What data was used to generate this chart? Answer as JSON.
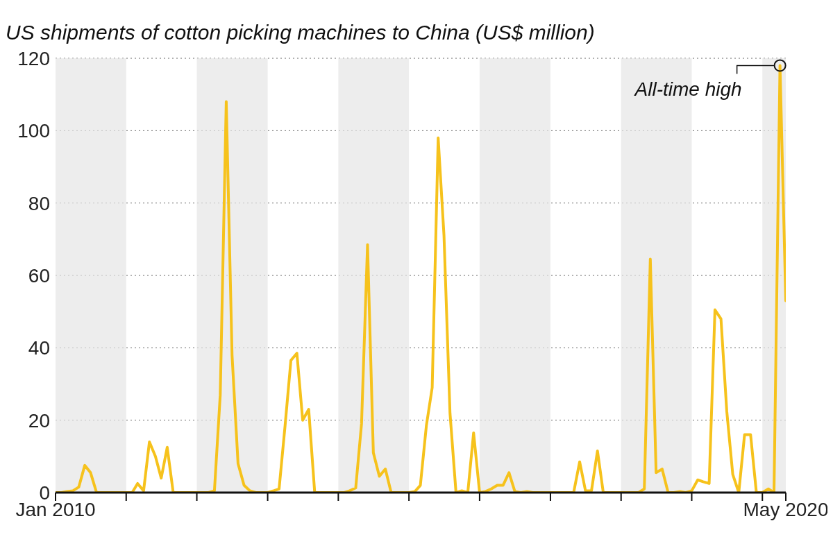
{
  "chart_data": {
    "type": "line",
    "subtitle": "US shipments of cotton picking machines to China (US$ million)",
    "x": [
      "2010-01",
      "2010-02",
      "2010-03",
      "2010-04",
      "2010-05",
      "2010-06",
      "2010-07",
      "2010-08",
      "2010-09",
      "2010-10",
      "2010-11",
      "2010-12",
      "2011-01",
      "2011-02",
      "2011-03",
      "2011-04",
      "2011-05",
      "2011-06",
      "2011-07",
      "2011-08",
      "2011-09",
      "2011-10",
      "2011-11",
      "2011-12",
      "2012-01",
      "2012-02",
      "2012-03",
      "2012-04",
      "2012-05",
      "2012-06",
      "2012-07",
      "2012-08",
      "2012-09",
      "2012-10",
      "2012-11",
      "2012-12",
      "2013-01",
      "2013-02",
      "2013-03",
      "2013-04",
      "2013-05",
      "2013-06",
      "2013-07",
      "2013-08",
      "2013-09",
      "2013-10",
      "2013-11",
      "2013-12",
      "2014-01",
      "2014-02",
      "2014-03",
      "2014-04",
      "2014-05",
      "2014-06",
      "2014-07",
      "2014-08",
      "2014-09",
      "2014-10",
      "2014-11",
      "2014-12",
      "2015-01",
      "2015-02",
      "2015-03",
      "2015-04",
      "2015-05",
      "2015-06",
      "2015-07",
      "2015-08",
      "2015-09",
      "2015-10",
      "2015-11",
      "2015-12",
      "2016-01",
      "2016-02",
      "2016-03",
      "2016-04",
      "2016-05",
      "2016-06",
      "2016-07",
      "2016-08",
      "2016-09",
      "2016-10",
      "2016-11",
      "2016-12",
      "2017-01",
      "2017-02",
      "2017-03",
      "2017-04",
      "2017-05",
      "2017-06",
      "2017-07",
      "2017-08",
      "2017-09",
      "2017-10",
      "2017-11",
      "2017-12",
      "2018-01",
      "2018-02",
      "2018-03",
      "2018-04",
      "2018-05",
      "2018-06",
      "2018-07",
      "2018-08",
      "2018-09",
      "2018-10",
      "2018-11",
      "2018-12",
      "2019-01",
      "2019-02",
      "2019-03",
      "2019-04",
      "2019-05",
      "2019-06",
      "2019-07",
      "2019-08",
      "2019-09",
      "2019-10",
      "2019-11",
      "2019-12",
      "2020-01",
      "2020-02",
      "2020-03",
      "2020-04",
      "2020-05"
    ],
    "series": [
      {
        "color": "#f6c21c",
        "values": [
          0,
          0,
          0.3,
          0.5,
          1.5,
          7.5,
          5.5,
          0,
          0,
          0,
          0,
          0,
          0,
          0,
          2.5,
          0.5,
          14,
          10,
          4,
          12.5,
          0,
          0,
          0,
          0,
          0,
          0,
          0,
          0.5,
          27,
          108,
          38,
          8,
          2,
          0.5,
          0,
          0,
          0,
          0.5,
          1,
          18.5,
          36.5,
          38.5,
          20,
          23,
          0,
          0,
          0,
          0,
          0,
          0,
          0.5,
          1.3,
          19,
          68.5,
          11,
          4.5,
          6.5,
          0,
          0,
          0,
          0,
          0.3,
          2,
          18.5,
          29,
          98,
          71,
          22,
          0,
          0.5,
          0,
          16.5,
          0,
          0.3,
          1,
          2,
          2,
          5.5,
          0.3,
          0,
          0.3,
          0,
          0,
          0,
          0,
          0,
          0,
          0,
          0,
          8.5,
          0.5,
          0.5,
          11.5,
          0,
          0,
          0,
          0,
          0,
          0,
          0,
          1,
          64.5,
          5.5,
          6.5,
          0,
          0,
          0.3,
          0,
          0.5,
          3.5,
          3,
          2.5,
          50.5,
          48,
          22.5,
          5,
          0,
          16,
          16,
          0,
          0,
          1,
          0,
          118,
          53
        ]
      }
    ],
    "xlim": [
      "2010-01",
      "2020-05"
    ],
    "xticks": [
      {
        "value": "2010-01",
        "label": "Jan 2010"
      },
      {
        "value": "2011-01",
        "label": null
      },
      {
        "value": "2012-01",
        "label": null
      },
      {
        "value": "2013-01",
        "label": null
      },
      {
        "value": "2014-01",
        "label": null
      },
      {
        "value": "2015-01",
        "label": null
      },
      {
        "value": "2016-01",
        "label": null
      },
      {
        "value": "2017-01",
        "label": null
      },
      {
        "value": "2018-01",
        "label": null
      },
      {
        "value": "2019-01",
        "label": null
      },
      {
        "value": "2020-01",
        "label": null
      },
      {
        "value": "2020-05",
        "label": "May 2020"
      }
    ],
    "ylim": [
      0,
      120
    ],
    "yticks": [
      0,
      20,
      40,
      60,
      80,
      100,
      120
    ],
    "grid": "y",
    "line_style": "solid",
    "marker": "none",
    "bands": [
      {
        "axis": "x",
        "from": "2010-01",
        "to": "2011-01",
        "color": "#e6e6e6"
      },
      {
        "axis": "x",
        "from": "2012-01",
        "to": "2013-01",
        "color": "#e6e6e6"
      },
      {
        "axis": "x",
        "from": "2014-01",
        "to": "2015-01",
        "color": "#e6e6e6"
      },
      {
        "axis": "x",
        "from": "2016-01",
        "to": "2017-01",
        "color": "#e6e6e6"
      },
      {
        "axis": "x",
        "from": "2018-01",
        "to": "2019-01",
        "color": "#e6e6e6"
      },
      {
        "axis": "x",
        "from": "2020-01",
        "to": "2020-05",
        "color": "#e6e6e6"
      }
    ],
    "annotations": [
      {
        "text": "All-time high",
        "x": "2020-04",
        "y": 118
      }
    ]
  }
}
